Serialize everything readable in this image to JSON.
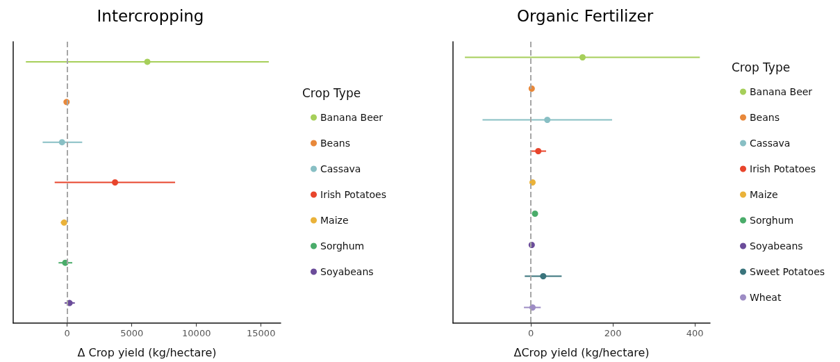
{
  "chart_data": [
    {
      "type": "scatter",
      "title": "Intercropping",
      "xlabel": "Δ Crop yield (kg/hectare)",
      "legend_title": "Crop Type",
      "orientation": "horizontal",
      "legend": "right",
      "grid": false,
      "tick_labels": "x",
      "marker": "circle",
      "categories": [
        null,
        null,
        null,
        null,
        null,
        null,
        null
      ],
      "xlim": [
        -4180,
        16520
      ],
      "xticks": [
        0,
        5000,
        10000,
        15000
      ],
      "ref_lines": [
        {
          "axis": "x",
          "value": 0,
          "color": "#a6a6a6",
          "line_style": "dashed"
        }
      ],
      "series": [
        {
          "name": "Banana Beer",
          "color": "#a6cf5a",
          "values": [
            6200,
            null,
            null,
            null,
            null,
            null,
            null
          ],
          "errors": [
            [
              -3200,
              15600
            ],
            null,
            null,
            null,
            null,
            null,
            null
          ]
        },
        {
          "name": "Beans",
          "color": "#e8883a",
          "values": [
            null,
            -50,
            null,
            null,
            null,
            null,
            null
          ],
          "errors": [
            null,
            null,
            null,
            null,
            null,
            null,
            null
          ]
        },
        {
          "name": "Cassava",
          "color": "#88bfc4",
          "values": [
            null,
            null,
            -400,
            null,
            null,
            null,
            null
          ],
          "errors": [
            null,
            null,
            [
              -1900,
              1160
            ],
            null,
            null,
            null,
            null
          ]
        },
        {
          "name": "Irish Potatoes",
          "color": "#e8452c",
          "values": [
            null,
            null,
            null,
            3700,
            null,
            null,
            null
          ],
          "errors": [
            null,
            null,
            null,
            [
              -970,
              8350
            ],
            null,
            null,
            null
          ]
        },
        {
          "name": "Maize",
          "color": "#eab23a",
          "values": [
            null,
            null,
            null,
            null,
            -240,
            null,
            null
          ],
          "errors": [
            null,
            null,
            null,
            null,
            [
              -500,
              -150
            ],
            null,
            null
          ]
        },
        {
          "name": "Sorghum",
          "color": "#4aac6a",
          "values": [
            null,
            null,
            null,
            null,
            null,
            -150,
            null
          ],
          "errors": [
            null,
            null,
            null,
            null,
            null,
            [
              -670,
              390
            ],
            null
          ]
        },
        {
          "name": "Soyabeans",
          "color": "#6b4c9a",
          "values": [
            null,
            null,
            null,
            null,
            null,
            null,
            180
          ],
          "errors": [
            null,
            null,
            null,
            null,
            null,
            null,
            [
              -200,
              590
            ]
          ]
        }
      ]
    },
    {
      "type": "scatter",
      "title": "Organic Fertilizer",
      "xlabel": "ΔCrop yield (kg/hectare)",
      "legend_title": "Crop Type",
      "orientation": "horizontal",
      "legend": "right",
      "grid": false,
      "tick_labels": "x",
      "marker": "circle",
      "categories": [
        null,
        null,
        null,
        null,
        null,
        null,
        null,
        null,
        null
      ],
      "xlim": [
        -190,
        437
      ],
      "xticks": [
        0,
        200,
        400
      ],
      "ref_lines": [
        {
          "axis": "x",
          "value": 0,
          "color": "#a6a6a6",
          "line_style": "dashed"
        }
      ],
      "series": [
        {
          "name": "Banana Beer",
          "color": "#a6cf5a",
          "values": [
            126,
            null,
            null,
            null,
            null,
            null,
            null,
            null,
            null
          ],
          "errors": [
            [
              -161,
              412
            ],
            null,
            null,
            null,
            null,
            null,
            null,
            null,
            null
          ]
        },
        {
          "name": "Beans",
          "color": "#e8883a",
          "values": [
            null,
            2,
            null,
            null,
            null,
            null,
            null,
            null,
            null
          ],
          "errors": [
            null,
            null,
            null,
            null,
            null,
            null,
            null,
            null,
            null
          ]
        },
        {
          "name": "Cassava",
          "color": "#88bfc4",
          "values": [
            null,
            null,
            40,
            null,
            null,
            null,
            null,
            null,
            null
          ],
          "errors": [
            null,
            null,
            [
              -118,
              198
            ],
            null,
            null,
            null,
            null,
            null,
            null
          ]
        },
        {
          "name": "Irish Potatoes",
          "color": "#e8452c",
          "values": [
            null,
            null,
            null,
            18,
            null,
            null,
            null,
            null,
            null
          ],
          "errors": [
            null,
            null,
            null,
            [
              -2,
              37
            ],
            null,
            null,
            null,
            null,
            null
          ]
        },
        {
          "name": "Maize",
          "color": "#eab23a",
          "values": [
            null,
            null,
            null,
            null,
            4,
            null,
            null,
            null,
            null
          ],
          "errors": [
            null,
            null,
            null,
            null,
            null,
            null,
            null,
            null,
            null
          ]
        },
        {
          "name": "Sorghum",
          "color": "#4aac6a",
          "values": [
            null,
            null,
            null,
            null,
            null,
            10,
            null,
            null,
            null
          ],
          "errors": [
            null,
            null,
            null,
            null,
            null,
            [
              6,
              14
            ],
            null,
            null,
            null
          ]
        },
        {
          "name": "Soyabeans",
          "color": "#6b4c9a",
          "values": [
            null,
            null,
            null,
            null,
            null,
            null,
            2,
            null,
            null
          ],
          "errors": [
            null,
            null,
            null,
            null,
            null,
            null,
            null,
            null,
            null
          ]
        },
        {
          "name": "Sweet Potatoes",
          "color": "#3a747c",
          "values": [
            null,
            null,
            null,
            null,
            null,
            null,
            null,
            30,
            null
          ],
          "errors": [
            null,
            null,
            null,
            null,
            null,
            null,
            null,
            [
              -15,
              75
            ],
            null
          ]
        },
        {
          "name": "Wheat",
          "color": "#9d8cc4",
          "values": [
            null,
            null,
            null,
            null,
            null,
            null,
            null,
            null,
            4
          ],
          "errors": [
            null,
            null,
            null,
            null,
            null,
            null,
            null,
            null,
            [
              -17,
              24
            ]
          ]
        }
      ]
    }
  ]
}
